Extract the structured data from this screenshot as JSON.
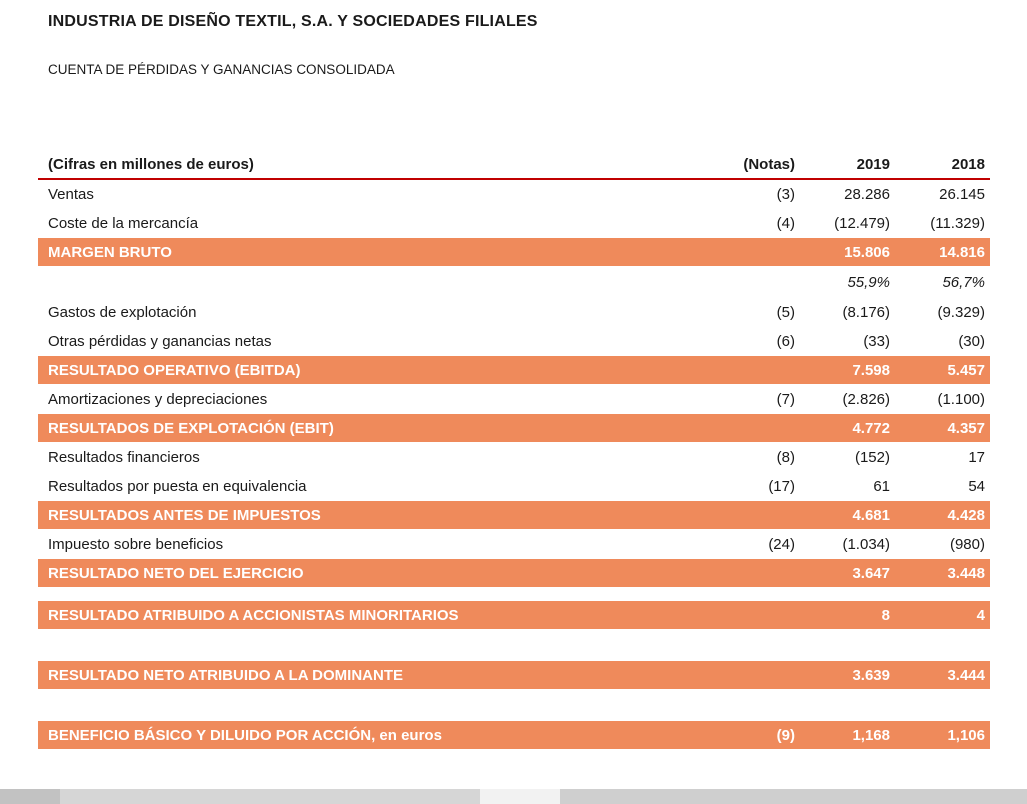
{
  "page": {
    "title": "INDUSTRIA DE DISEÑO TEXTIL, S.A. Y SOCIEDADES FILIALES",
    "subtitle": "CUENTA DE PÉRDIDAS Y GANANCIAS CONSOLIDADA"
  },
  "colors": {
    "highlight": "#ef8a5b",
    "highlight_text": "#ffffff",
    "header_rule": "#c00000",
    "text": "#1a1a1a"
  },
  "table": {
    "columns": [
      "(Cifras en millones de euros)",
      "(Notas)",
      "2019",
      "2018"
    ],
    "rows": [
      {
        "label": "Ventas",
        "notas": "(3)",
        "y2019": "28.286",
        "y2018": "26.145",
        "style": "normal"
      },
      {
        "label": "Coste de la mercancía",
        "notas": "(4)",
        "y2019": "(12.479)",
        "y2018": "(11.329)",
        "style": "normal"
      },
      {
        "label": "MARGEN BRUTO",
        "notas": "",
        "y2019": "15.806",
        "y2018": "14.816",
        "style": "highlight"
      },
      {
        "label": "",
        "notas": "",
        "y2019": "55,9%",
        "y2018": "56,7%",
        "style": "pct"
      },
      {
        "label": "Gastos de explotación",
        "notas": "(5)",
        "y2019": "(8.176)",
        "y2018": "(9.329)",
        "style": "normal"
      },
      {
        "label": "Otras pérdidas y ganancias netas",
        "notas": "(6)",
        "y2019": "(33)",
        "y2018": "(30)",
        "style": "normal"
      },
      {
        "label": "RESULTADO OPERATIVO (EBITDA)",
        "notas": "",
        "y2019": "7.598",
        "y2018": "5.457",
        "style": "highlight"
      },
      {
        "label": "Amortizaciones y depreciaciones",
        "notas": "(7)",
        "y2019": "(2.826)",
        "y2018": "(1.100)",
        "style": "normal"
      },
      {
        "label": "RESULTADOS DE EXPLOTACIÓN (EBIT)",
        "notas": "",
        "y2019": "4.772",
        "y2018": "4.357",
        "style": "highlight"
      },
      {
        "label": "Resultados financieros",
        "notas": "(8)",
        "y2019": "(152)",
        "y2018": "17",
        "style": "normal"
      },
      {
        "label": "Resultados por puesta en equivalencia",
        "notas": "(17)",
        "y2019": "61",
        "y2018": "54",
        "style": "normal"
      },
      {
        "label": "RESULTADOS ANTES DE IMPUESTOS",
        "notas": "",
        "y2019": "4.681",
        "y2018": "4.428",
        "style": "highlight"
      },
      {
        "label": "Impuesto sobre beneficios",
        "notas": "(24)",
        "y2019": "(1.034)",
        "y2018": "(980)",
        "style": "normal"
      },
      {
        "label": "RESULTADO NETO DEL EJERCICIO",
        "notas": "",
        "y2019": "3.647",
        "y2018": "3.448",
        "style": "highlight"
      },
      {
        "style": "spacer-small"
      },
      {
        "label": "RESULTADO ATRIBUIDO A ACCIONISTAS MINORITARIOS",
        "notas": "",
        "y2019": "8",
        "y2018": "4",
        "style": "highlight"
      },
      {
        "style": "spacer-large"
      },
      {
        "label": "RESULTADO NETO ATRIBUIDO A LA DOMINANTE",
        "notas": "",
        "y2019": "3.639",
        "y2018": "3.444",
        "style": "highlight"
      },
      {
        "style": "spacer-large"
      },
      {
        "label": "BENEFICIO BÁSICO Y DILUIDO POR ACCIÓN,  en euros",
        "notas": "(9)",
        "y2019": "1,168",
        "y2018": "1,106",
        "style": "highlight"
      }
    ]
  }
}
